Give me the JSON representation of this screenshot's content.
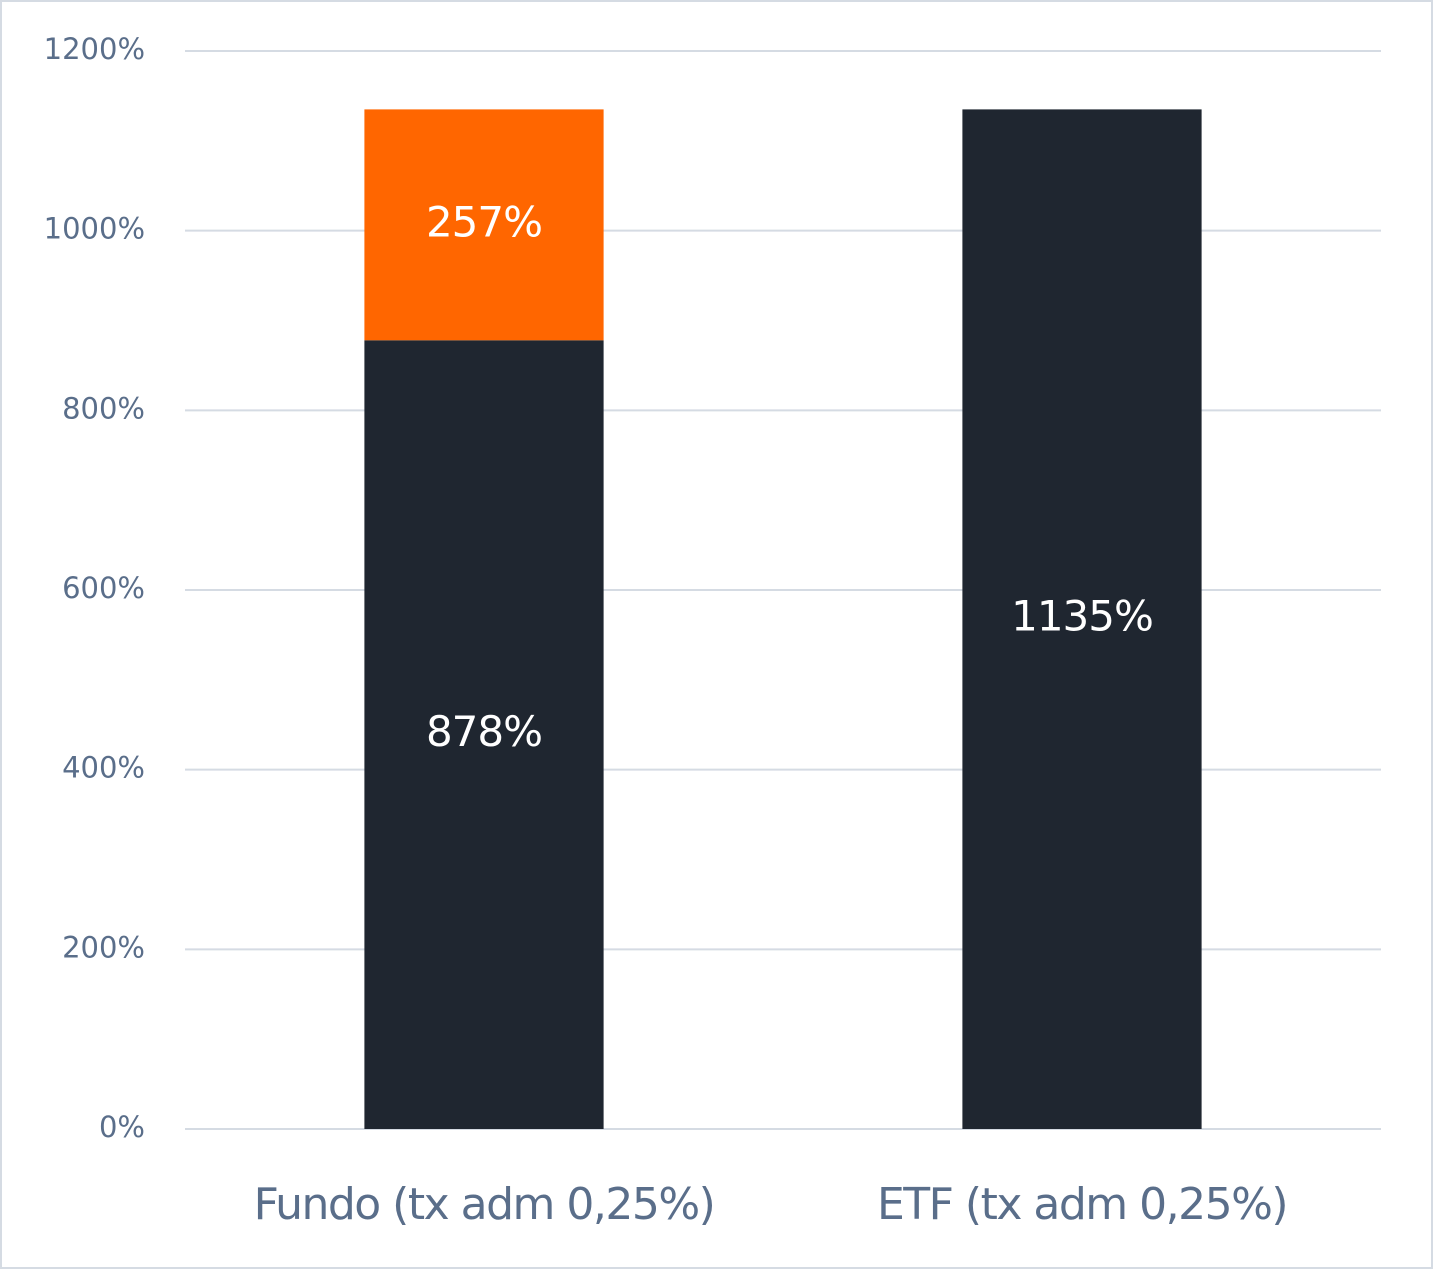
{
  "chart_data": {
    "type": "stacked_bar",
    "categories": [
      "Fundo (tx adm 0,25%)",
      "ETF (tx adm 0,25%)"
    ],
    "series": [
      {
        "color": "#1f2630",
        "values": [
          878,
          1135
        ],
        "value_labels": [
          "878%",
          "1135%"
        ]
      },
      {
        "color": "#ff6600",
        "values": [
          257,
          null
        ],
        "value_labels": [
          "257%",
          null
        ]
      }
    ],
    "ylim": [
      0,
      1200
    ],
    "yticks": [
      {
        "value": 0,
        "label": "0%"
      },
      {
        "value": 200,
        "label": "200%"
      },
      {
        "value": 400,
        "label": "400%"
      },
      {
        "value": 600,
        "label": "600%"
      },
      {
        "value": 800,
        "label": "800%"
      },
      {
        "value": 1000,
        "label": "1000%"
      },
      {
        "value": 1200,
        "label": "1200%"
      }
    ],
    "grid": true
  }
}
